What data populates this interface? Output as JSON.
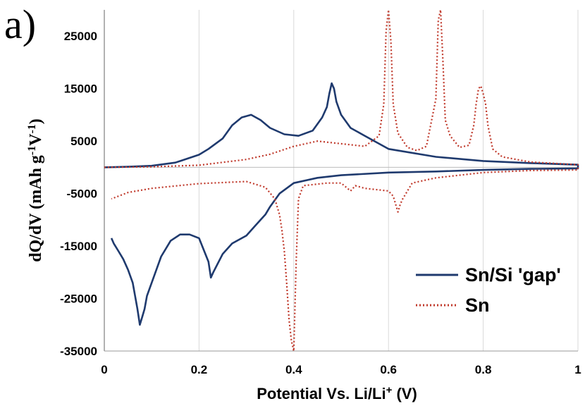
{
  "panel_label": "a)",
  "chart_data": {
    "type": "line",
    "xlabel": "Potential Vs. Li/Li",
    "xlabel_sup": "+",
    "xlabel_unit": " (V)",
    "ylabel_main": "dQ/dV (mAh g",
    "ylabel_sup1": "-1",
    "ylabel_mid": "V",
    "ylabel_sup2": "-1",
    "ylabel_end": ")",
    "xlim": [
      0,
      1
    ],
    "ylim": [
      -35000,
      30000
    ],
    "x_ticks": [
      0,
      0.2,
      0.4,
      0.6,
      0.8,
      1
    ],
    "x_tick_labels": [
      "0",
      "0.2",
      "0.4",
      "0.6",
      "0.8",
      "1"
    ],
    "y_ticks": [
      25000,
      15000,
      5000,
      -5000,
      -15000,
      -25000,
      -35000
    ],
    "y_tick_labels": [
      "25000",
      "15000",
      "5000",
      "-5000",
      "-15000",
      "-25000",
      "-35000"
    ],
    "legend_position": "bottom-right",
    "series": [
      {
        "name": "Sn/Si 'gap'",
        "color": "#1f3a6e",
        "style": "solid",
        "x": [
          0.0,
          0.05,
          0.1,
          0.15,
          0.2,
          0.22,
          0.25,
          0.27,
          0.29,
          0.31,
          0.33,
          0.35,
          0.38,
          0.41,
          0.44,
          0.46,
          0.47,
          0.475,
          0.48,
          0.485,
          0.49,
          0.5,
          0.52,
          0.55,
          0.6,
          0.7,
          0.8,
          0.9,
          1.0,
          1.0,
          0.9,
          0.8,
          0.7,
          0.6,
          0.5,
          0.45,
          0.4,
          0.37,
          0.35,
          0.34,
          0.32,
          0.3,
          0.27,
          0.25,
          0.23,
          0.225,
          0.22,
          0.2,
          0.18,
          0.16,
          0.14,
          0.12,
          0.1,
          0.09,
          0.085,
          0.08,
          0.075,
          0.07,
          0.06,
          0.05,
          0.04,
          0.03,
          0.02,
          0.015
        ],
        "y": [
          0,
          100,
          300,
          900,
          2400,
          3500,
          5500,
          8000,
          9500,
          10000,
          9000,
          7500,
          6300,
          6000,
          7000,
          9500,
          11500,
          14000,
          16000,
          15000,
          12500,
          10000,
          7500,
          6000,
          3500,
          2000,
          1200,
          800,
          500,
          -200,
          -300,
          -500,
          -800,
          -1000,
          -1500,
          -2000,
          -3000,
          -5000,
          -7500,
          -9000,
          -11000,
          -13000,
          -14500,
          -16500,
          -20000,
          -21000,
          -18000,
          -13500,
          -12800,
          -12800,
          -14000,
          -17000,
          -22000,
          -24500,
          -27000,
          -28500,
          -30000,
          -27000,
          -22000,
          -19500,
          -17500,
          -16000,
          -14500,
          -13500
        ]
      },
      {
        "name": "Sn",
        "color": "#c0392b",
        "style": "dotted",
        "x": [
          0.0,
          0.1,
          0.2,
          0.3,
          0.35,
          0.4,
          0.45,
          0.5,
          0.55,
          0.58,
          0.59,
          0.595,
          0.6,
          0.605,
          0.61,
          0.62,
          0.64,
          0.66,
          0.68,
          0.7,
          0.705,
          0.71,
          0.715,
          0.72,
          0.73,
          0.75,
          0.77,
          0.78,
          0.785,
          0.79,
          0.795,
          0.8,
          0.805,
          0.81,
          0.82,
          0.84,
          0.9,
          1.0,
          1.0,
          0.9,
          0.8,
          0.7,
          0.65,
          0.64,
          0.63,
          0.625,
          0.62,
          0.61,
          0.6,
          0.55,
          0.53,
          0.52,
          0.5,
          0.47,
          0.45,
          0.42,
          0.41,
          0.405,
          0.4,
          0.395,
          0.39,
          0.385,
          0.38,
          0.375,
          0.37,
          0.36,
          0.34,
          0.3,
          0.2,
          0.1,
          0.05,
          0.015
        ],
        "y": [
          0,
          100,
          400,
          1500,
          2500,
          4000,
          5000,
          4500,
          4000,
          6000,
          12000,
          26000,
          30000,
          24000,
          12000,
          6500,
          3800,
          3200,
          4000,
          13000,
          28000,
          30000,
          20000,
          9000,
          6000,
          3800,
          4200,
          8000,
          12000,
          15000,
          15500,
          14000,
          12000,
          8000,
          3500,
          2000,
          1000,
          500,
          -500,
          -600,
          -1000,
          -2000,
          -3000,
          -4500,
          -6000,
          -7000,
          -8500,
          -5500,
          -4500,
          -4000,
          -3500,
          -4500,
          -3000,
          -3000,
          -3200,
          -3500,
          -6000,
          -18000,
          -35000,
          -33000,
          -29000,
          -22000,
          -16000,
          -12000,
          -9000,
          -6000,
          -3800,
          -2700,
          -3100,
          -4000,
          -4800,
          -6000
        ]
      }
    ]
  }
}
